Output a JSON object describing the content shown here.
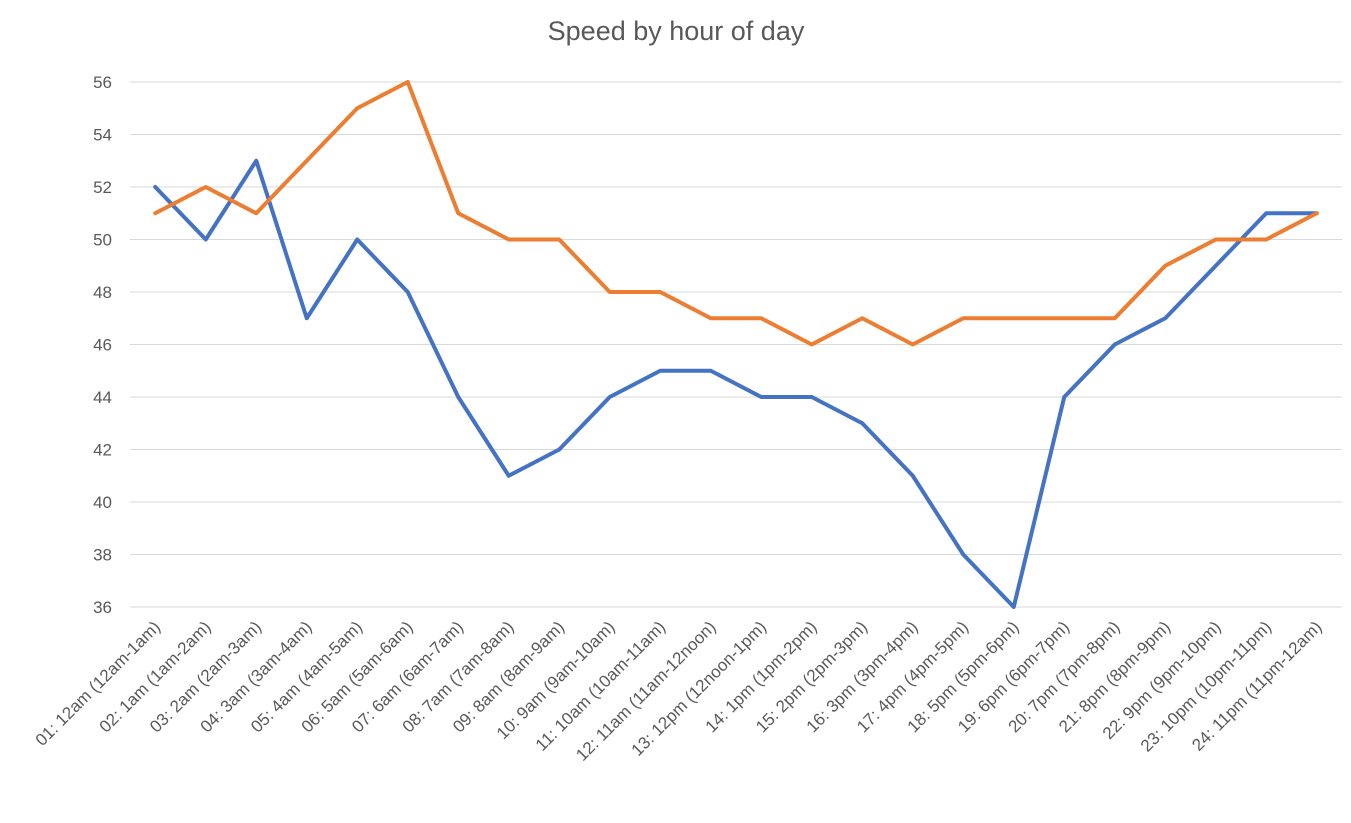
{
  "chart_data": {
    "type": "line",
    "title": "Speed by hour of day",
    "xlabel": "",
    "ylabel": "",
    "ylim": [
      36,
      56
    ],
    "yticks": [
      36,
      38,
      40,
      42,
      44,
      46,
      48,
      50,
      52,
      54,
      56
    ],
    "grid": true,
    "legend": "none",
    "categories": [
      "01: 12am (12am-1am)",
      "02: 1am (1am-2am)",
      "03: 2am (2am-3am)",
      "04: 3am (3am-4am)",
      "05: 4am (4am-5am)",
      "06: 5am (5am-6am)",
      "07: 6am (6am-7am)",
      "08: 7am (7am-8am)",
      "09: 8am (8am-9am)",
      "10: 9am (9am-10am)",
      "11: 10am (10am-11am)",
      "12: 11am (11am-12noon)",
      "13: 12pm (12noon-1pm)",
      "14: 1pm (1pm-2pm)",
      "15: 2pm (2pm-3pm)",
      "16: 3pm (3pm-4pm)",
      "17: 4pm (4pm-5pm)",
      "18: 5pm (5pm-6pm)",
      "19: 6pm (6pm-7pm)",
      "20: 7pm (7pm-8pm)",
      "21: 8pm (8pm-9pm)",
      "22: 9pm (9pm-10pm)",
      "23: 10pm (10pm-11pm)",
      "24: 11pm (11pm-12am)"
    ],
    "series": [
      {
        "color": "#4472C4",
        "values": [
          52,
          50,
          53,
          47,
          50,
          48,
          44,
          41,
          42,
          44,
          45,
          45,
          44,
          44,
          43,
          41,
          38,
          36,
          44,
          46,
          47,
          49,
          51,
          51
        ]
      },
      {
        "color": "#ED7D31",
        "values": [
          51,
          52,
          51,
          53,
          55,
          56,
          51,
          50,
          50,
          48,
          48,
          47,
          47,
          46,
          47,
          46,
          47,
          47,
          47,
          47,
          49,
          50,
          50,
          51
        ]
      }
    ]
  }
}
